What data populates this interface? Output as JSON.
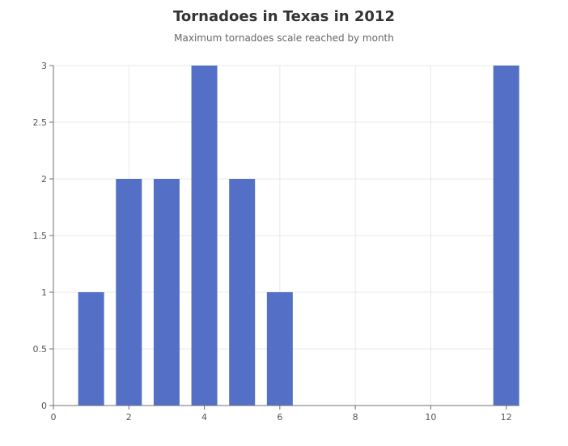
{
  "chart_data": {
    "type": "bar",
    "title": "Tornadoes in Texas in 2012",
    "subtitle": "Maximum tornadoes scale reached by month",
    "xlabel": "",
    "ylabel": "",
    "x": [
      1,
      2,
      3,
      4,
      5,
      6,
      12
    ],
    "values": [
      1,
      2,
      2,
      3,
      2,
      1,
      3
    ],
    "xlim": [
      0,
      12.35
    ],
    "ylim": [
      0,
      3
    ],
    "xticks": [
      0,
      2,
      4,
      6,
      8,
      10,
      12
    ],
    "yticks": [
      0,
      0.5,
      1,
      1.5,
      2,
      2.5,
      3
    ],
    "grid": true,
    "bar_color": "#5470c6",
    "grid_color": "#e6e8ee",
    "axis_color": "#6e7079"
  }
}
